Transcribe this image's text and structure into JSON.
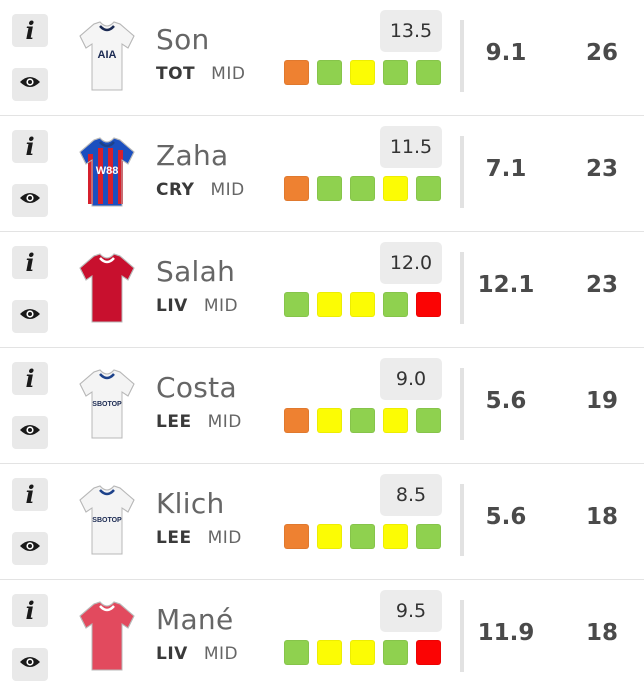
{
  "colors": {
    "fdr_orange": "#ee8131",
    "fdr_green": "#8fd14f",
    "fdr_yellow": "#fcfc04",
    "fdr_red": "#fb0404"
  },
  "players": [
    {
      "name": "Son",
      "team": "TOT",
      "position": "MID",
      "price": "13.5",
      "stat_a": "9.1",
      "stat_b": "26",
      "shirt": {
        "kind": "spurs",
        "primary": "#f5f5f5",
        "accent": "#1b2a52",
        "sponsor": "AIA"
      },
      "fixtures": [
        "orange",
        "green",
        "yellow",
        "green",
        "green"
      ]
    },
    {
      "name": "Zaha",
      "team": "CRY",
      "position": "MID",
      "price": "11.5",
      "stat_a": "7.1",
      "stat_b": "23",
      "shirt": {
        "kind": "palace",
        "primary": "#1b4fbf",
        "accent": "#d6202c",
        "sponsor": "W88"
      },
      "fixtures": [
        "orange",
        "green",
        "green",
        "yellow",
        "green"
      ]
    },
    {
      "name": "Salah",
      "team": "LIV",
      "position": "MID",
      "price": "12.0",
      "stat_a": "12.1",
      "stat_b": "23",
      "shirt": {
        "kind": "liverpool",
        "primary": "#c8102e",
        "accent": "#ffffff",
        "sponsor": ""
      },
      "fixtures": [
        "green",
        "yellow",
        "yellow",
        "green",
        "red"
      ]
    },
    {
      "name": "Costa",
      "team": "LEE",
      "position": "MID",
      "price": "9.0",
      "stat_a": "5.6",
      "stat_b": "19",
      "shirt": {
        "kind": "leeds",
        "primary": "#f4f4f4",
        "accent": "#1d428a",
        "sponsor": "SBOTOP"
      },
      "fixtures": [
        "orange",
        "yellow",
        "green",
        "yellow",
        "green"
      ]
    },
    {
      "name": "Klich",
      "team": "LEE",
      "position": "MID",
      "price": "8.5",
      "stat_a": "5.6",
      "stat_b": "18",
      "shirt": {
        "kind": "leeds",
        "primary": "#f4f4f4",
        "accent": "#1d428a",
        "sponsor": "SBOTOP"
      },
      "fixtures": [
        "orange",
        "yellow",
        "green",
        "yellow",
        "green"
      ]
    },
    {
      "name": "Mané",
      "team": "LIV",
      "position": "MID",
      "price": "9.5",
      "stat_a": "11.9",
      "stat_b": "18",
      "shirt": {
        "kind": "liverpool-faded",
        "primary": "#e24a5e",
        "accent": "#ffffff",
        "sponsor": ""
      },
      "fixtures": [
        "green",
        "yellow",
        "yellow",
        "green",
        "red"
      ]
    }
  ],
  "icons": {
    "info": "info-icon",
    "eye": "eye-icon"
  },
  "info_glyph": "i"
}
